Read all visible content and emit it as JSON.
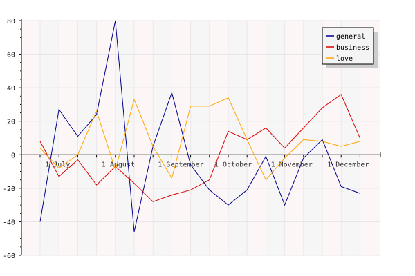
{
  "chart_data": {
    "type": "line",
    "y_ticks": [
      80,
      60,
      40,
      20,
      0,
      -20,
      -40,
      -60
    ],
    "ylim": [
      -60,
      80
    ],
    "grid": true,
    "legend_position": "top-right",
    "x_tick_labels": [
      "1 July",
      "1 August",
      "1 September",
      "1 October",
      "1 November",
      "1 December"
    ],
    "x_tick_positions": [
      1,
      4,
      7,
      10,
      13,
      16
    ],
    "series": [
      {
        "name": "general",
        "color": "#00008b",
        "values": [
          -40,
          27,
          11,
          24,
          80,
          -46,
          5,
          37,
          -6,
          -21,
          -30,
          -21,
          -1,
          -30,
          -2,
          9,
          -19,
          -23
        ]
      },
      {
        "name": "business",
        "color": "#dd0000",
        "values": [
          8,
          -13,
          -3,
          -18,
          -7,
          -17,
          -28,
          -24,
          -21,
          -15,
          14,
          9,
          16,
          4,
          16,
          28,
          36,
          10
        ]
      },
      {
        "name": "love",
        "color": "#ffa500",
        "values": [
          4,
          -8,
          0,
          26,
          -9,
          33,
          5,
          -14,
          29,
          29,
          34,
          9,
          -15,
          -2,
          9,
          8,
          5,
          8
        ]
      }
    ]
  }
}
